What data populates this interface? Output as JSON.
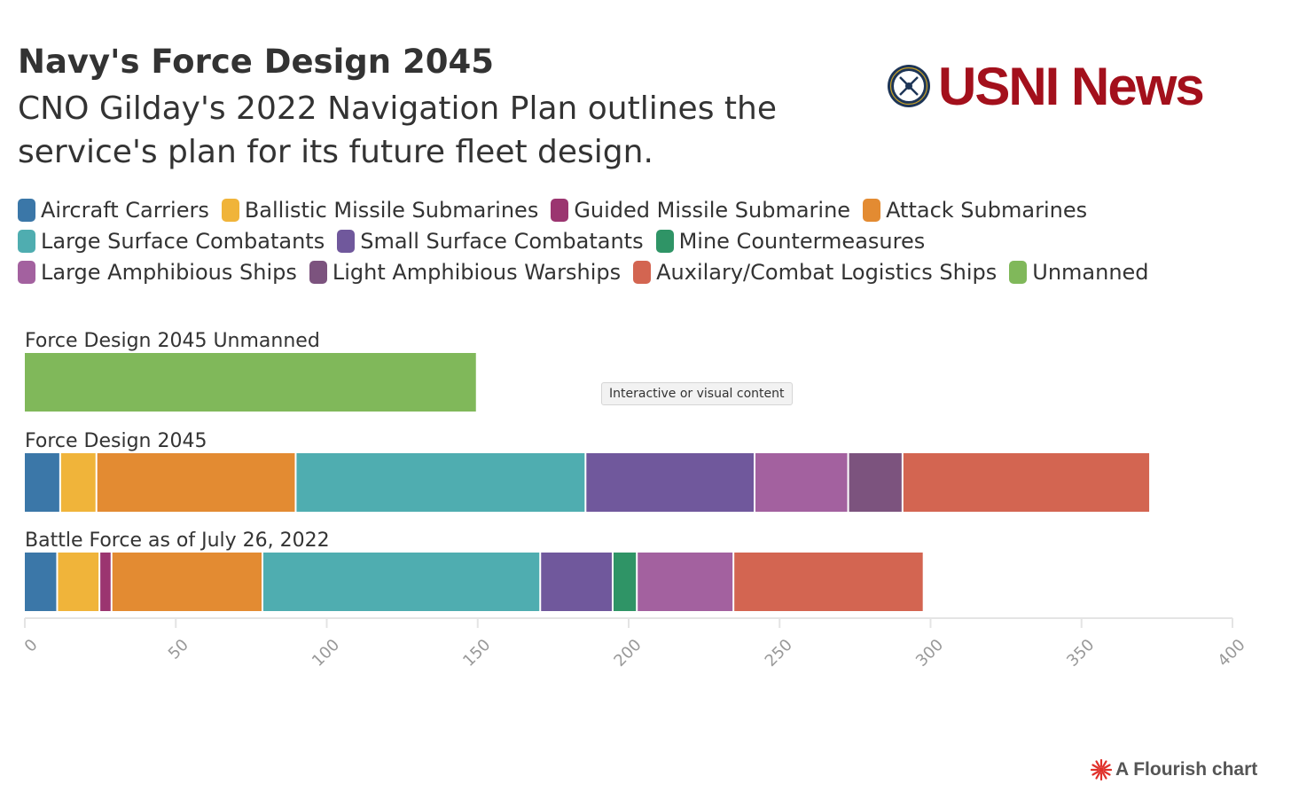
{
  "header": {
    "title": "Navy's Force Design 2045",
    "subtitle": "CNO Gilday's 2022 Navigation Plan outlines the service's plan for its future fleet design."
  },
  "logo": {
    "text": "USNI News",
    "color": "#a3101c",
    "icon": "naval-institute-seal-icon"
  },
  "legend": [
    {
      "label": "Aircraft Carriers",
      "color": "#3b77a8"
    },
    {
      "label": "Ballistic Missile Submarines",
      "color": "#f0b43a"
    },
    {
      "label": "Guided Missile Submarine",
      "color": "#9b3570"
    },
    {
      "label": "Attack Submarines",
      "color": "#e38b32"
    },
    {
      "label": "Large Surface Combatants",
      "color": "#4fadb0"
    },
    {
      "label": "Small Surface Combatants",
      "color": "#70589c"
    },
    {
      "label": "Mine Countermeasures",
      "color": "#2f9466"
    },
    {
      "label": "Large Amphibious Ships",
      "color": "#a3619f"
    },
    {
      "label": "Light Amphibious Warships",
      "color": "#7c537e"
    },
    {
      "label": "Auxilary/Combat Logistics Ships",
      "color": "#d36551"
    },
    {
      "label": "Unmanned",
      "color": "#80b85a"
    }
  ],
  "tooltip_badge": "Interactive or visual content",
  "footer": {
    "text": "A Flourish chart",
    "icon": "flourish-burst-icon",
    "icon_color": "#e0302a"
  },
  "chart_data": {
    "type": "bar",
    "orientation": "horizontal",
    "stacked": true,
    "categories": [
      "Force Design 2045 Unmanned",
      "Force Design 2045",
      "Battle Force as of July 26, 2022"
    ],
    "series": [
      {
        "name": "Aircraft Carriers",
        "values": [
          0,
          12,
          11
        ]
      },
      {
        "name": "Ballistic Missile Submarines",
        "values": [
          0,
          12,
          14
        ]
      },
      {
        "name": "Guided Missile Submarine",
        "values": [
          0,
          0,
          4
        ]
      },
      {
        "name": "Attack Submarines",
        "values": [
          0,
          66,
          50
        ]
      },
      {
        "name": "Large Surface Combatants",
        "values": [
          0,
          96,
          92
        ]
      },
      {
        "name": "Small Surface Combatants",
        "values": [
          0,
          56,
          24
        ]
      },
      {
        "name": "Mine Countermeasures",
        "values": [
          0,
          0,
          8
        ]
      },
      {
        "name": "Large Amphibious Ships",
        "values": [
          0,
          31,
          32
        ]
      },
      {
        "name": "Light Amphibious Warships",
        "values": [
          0,
          18,
          0
        ]
      },
      {
        "name": "Auxilary/Combat Logistics Ships",
        "values": [
          0,
          82,
          63
        ]
      },
      {
        "name": "Unmanned",
        "values": [
          150,
          0,
          0
        ]
      }
    ],
    "xlim": [
      0,
      400
    ],
    "xticks": [
      0,
      50,
      100,
      150,
      200,
      250,
      300,
      350,
      400
    ],
    "grid": false,
    "legend_position": "top"
  }
}
